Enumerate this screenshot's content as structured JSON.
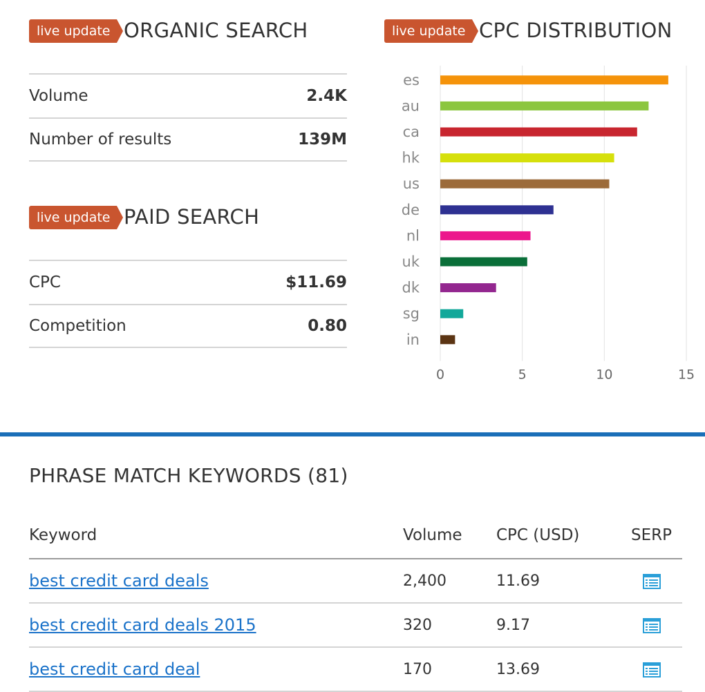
{
  "organic": {
    "badge": "live update",
    "title": "ORGANIC SEARCH",
    "rows": [
      {
        "label": "Volume",
        "value": "2.4K"
      },
      {
        "label": "Number of results",
        "value": "139M"
      }
    ]
  },
  "paid": {
    "badge": "live update",
    "title": "PAID SEARCH",
    "rows": [
      {
        "label": "CPC",
        "value": "$11.69"
      },
      {
        "label": "Competition",
        "value": "0.80"
      }
    ]
  },
  "cpc_section": {
    "badge": "live update",
    "title": "CPC DISTRIBUTION"
  },
  "chart_data": {
    "type": "bar",
    "orientation": "horizontal",
    "title": "CPC DISTRIBUTION",
    "categories": [
      "es",
      "au",
      "ca",
      "hk",
      "us",
      "de",
      "nl",
      "uk",
      "dk",
      "sg",
      "in"
    ],
    "values": [
      13.9,
      12.7,
      12.0,
      10.6,
      10.3,
      6.9,
      5.5,
      5.3,
      3.4,
      1.4,
      0.9
    ],
    "colors": [
      "#f5930a",
      "#8cc63f",
      "#c8262f",
      "#d6e00c",
      "#9c6b3a",
      "#2e3192",
      "#ec168c",
      "#0a6f39",
      "#93278f",
      "#12a89a",
      "#5b3413"
    ],
    "xlim": [
      0,
      15
    ],
    "xticks": [
      "0",
      "5",
      "10",
      "15"
    ],
    "grid": true,
    "xlabel": "",
    "ylabel": ""
  },
  "keywords": {
    "title": "PHRASE MATCH KEYWORDS (81)",
    "columns": {
      "keyword": "Keyword",
      "volume": "Volume",
      "cpc": "CPC (USD)",
      "serp": "SERP"
    },
    "rows": [
      {
        "keyword": "best credit card deals",
        "volume": "2,400",
        "cpc": "11.69"
      },
      {
        "keyword": "best credit card deals 2015",
        "volume": "320",
        "cpc": "9.17"
      },
      {
        "keyword": "best credit card deal",
        "volume": "170",
        "cpc": "13.69"
      }
    ],
    "serp_icon": "list-document-icon",
    "link_color": "#1a72c9"
  },
  "accent": {
    "badge": "#c9552f",
    "divider": "#1a6fb8"
  }
}
